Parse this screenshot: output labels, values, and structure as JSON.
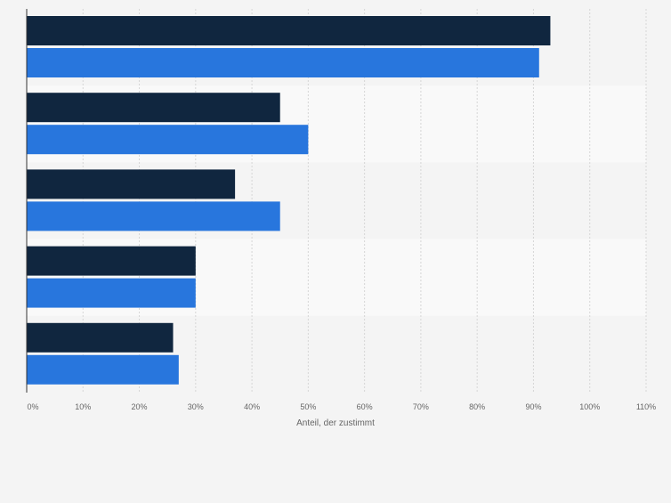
{
  "chart_data": {
    "type": "bar",
    "orientation": "horizontal",
    "categories": [
      "",
      "",
      "",
      "",
      ""
    ],
    "series": [
      {
        "color": "#10263f",
        "values": [
          93,
          45,
          37,
          30,
          26
        ]
      },
      {
        "color": "#2876dd",
        "values": [
          91,
          50,
          45,
          30,
          27
        ]
      }
    ],
    "xlabel": "Anteil, der zustimmt",
    "xlim": [
      0,
      110
    ],
    "ticks": [
      "0%",
      "10%",
      "20%",
      "30%",
      "40%",
      "50%",
      "60%",
      "70%",
      "80%",
      "90%",
      "100%",
      "110%"
    ],
    "tick_values": [
      0,
      10,
      20,
      30,
      40,
      50,
      60,
      70,
      80,
      90,
      100,
      110
    ],
    "grid": true
  }
}
